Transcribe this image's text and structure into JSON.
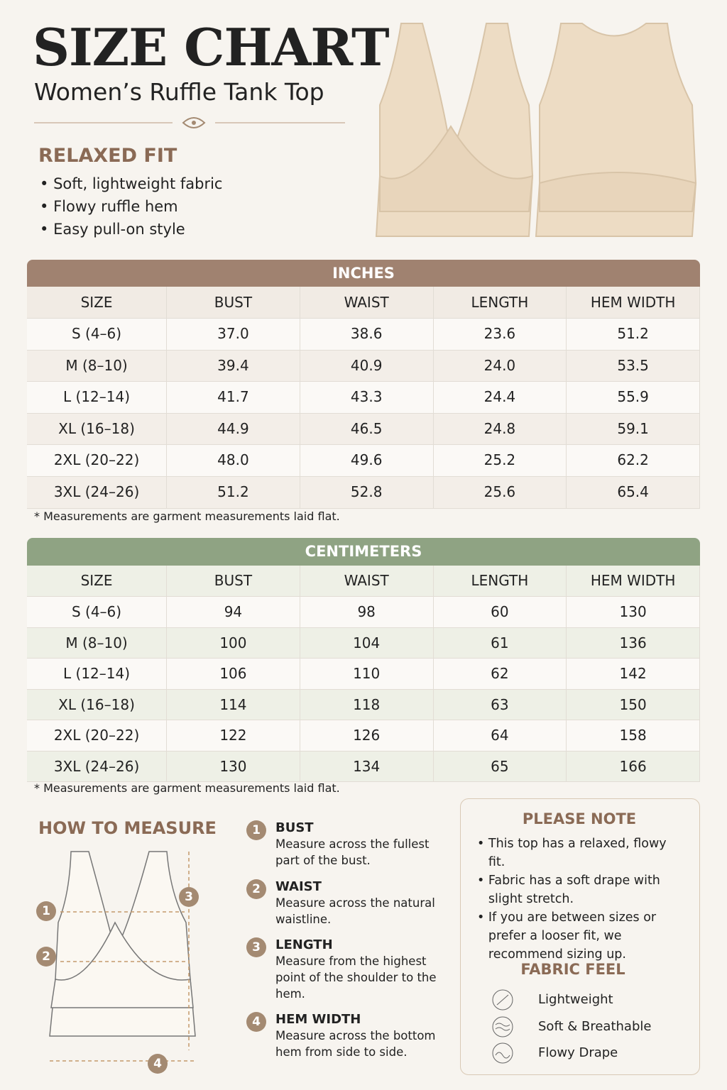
{
  "header": {
    "title": "SIZE CHART",
    "subtitle": "Women’s Ruffle Tank Top"
  },
  "fit": {
    "title": "RELAXED FIT",
    "bullets": [
      "Soft, lightweight fabric",
      "Flowy ruffle hem",
      "Easy pull-on style"
    ]
  },
  "tables": [
    {
      "title": "INCHES",
      "columns": [
        "SIZE",
        "BUST",
        "WAIST",
        "LENGTH",
        "HEM WIDTH"
      ],
      "rows": [
        [
          "S (4–6)",
          "37.0",
          "38.6",
          "23.6",
          "51.2"
        ],
        [
          "M (8–10)",
          "39.4",
          "40.9",
          "24.0",
          "53.5"
        ],
        [
          "L (12–14)",
          "41.7",
          "43.3",
          "24.4",
          "55.9"
        ],
        [
          "XL (16–18)",
          "44.9",
          "46.5",
          "24.8",
          "59.1"
        ],
        [
          "2XL (20–22)",
          "48.0",
          "49.6",
          "25.2",
          "62.2"
        ],
        [
          "3XL (24–26)",
          "51.2",
          "52.8",
          "25.6",
          "65.4"
        ]
      ],
      "note": "* Measurements are garment measurements laid flat."
    },
    {
      "title": "CENTIMETERS",
      "columns": [
        "SIZE",
        "BUST",
        "WAIST",
        "LENGTH",
        "HEM WIDTH"
      ],
      "rows": [
        [
          "S (4–6)",
          "94",
          "98",
          "60",
          "130"
        ],
        [
          "M (8–10)",
          "100",
          "104",
          "61",
          "136"
        ],
        [
          "L (12–14)",
          "106",
          "110",
          "62",
          "142"
        ],
        [
          "XL (16–18)",
          "114",
          "118",
          "63",
          "150"
        ],
        [
          "2XL (20–22)",
          "122",
          "126",
          "64",
          "158"
        ],
        [
          "3XL (24–26)",
          "130",
          "134",
          "65",
          "166"
        ]
      ],
      "note": "* Measurements are garment measurements laid flat."
    }
  ],
  "how_to_measure": {
    "title": "HOW TO MEASURE",
    "steps": [
      {
        "number": "1",
        "title": "BUST",
        "text": "Measure across the fullest part of the bust."
      },
      {
        "number": "2",
        "title": "WAIST",
        "text": "Measure across the natural waistline."
      },
      {
        "number": "3",
        "title": "LENGTH",
        "text": "Measure from the highest point of the shoulder to the hem."
      },
      {
        "number": "4",
        "title": "HEM WIDTH",
        "text": "Measure across the bottom hem from side to side."
      }
    ]
  },
  "note": {
    "title": "PLEASE NOTE",
    "bullets": [
      "This top has a relaxed, flowy fit.",
      "Fabric has a soft drape with slight stretch.",
      "If you are between sizes or prefer a looser fit, we recommend sizing up."
    ]
  },
  "fabric": {
    "title": "FABRIC FEEL",
    "items": [
      "Lightweight",
      "Soft & Breathable",
      "Flowy Drape"
    ]
  }
}
